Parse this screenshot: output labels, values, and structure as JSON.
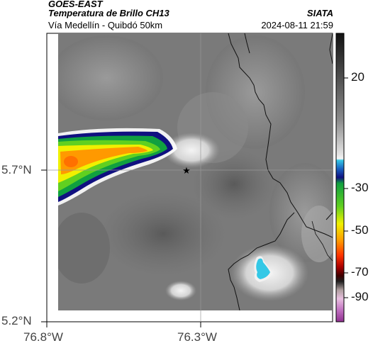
{
  "header": {
    "satellite": "GOES-EAST",
    "product": "Temperatura de Brillo CH13",
    "region": "Vía Medellín - Quibdó 50km",
    "organization": "SIATA",
    "timestamp": "2024-08-11 21:59"
  },
  "map": {
    "latitude_labels": [
      "5.7°N",
      "5.2°N"
    ],
    "longitude_labels": [
      "76.8°W",
      "76.3°W"
    ],
    "marker": "star-icon"
  },
  "colorbar": {
    "tick_labels": [
      "20",
      "-30",
      "-50",
      "-70",
      "-90"
    ],
    "colors": {
      "warm_gray": "#8c8c8c",
      "cold_cyan": "#34c8e6",
      "green": "#22bb22",
      "yellow": "#f0f000",
      "orange": "#ff8800",
      "red": "#dd1111",
      "magenta": "#b040b0"
    }
  }
}
